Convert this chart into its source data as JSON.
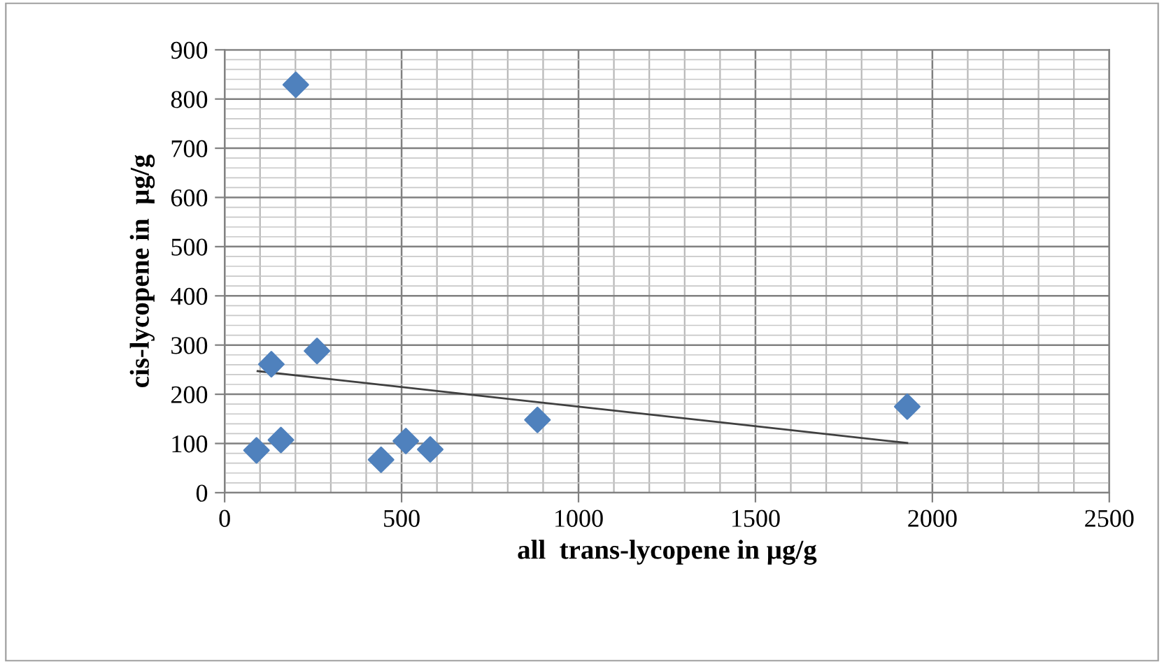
{
  "chart_data": {
    "type": "scatter",
    "xlabel": "all  trans-lycopene in µg/g",
    "ylabel": "cis-lycopene in  µg/g",
    "xlim": [
      0,
      2500
    ],
    "xticks": [
      0,
      500,
      1000,
      1500,
      2000,
      2500
    ],
    "ylim": [
      0,
      900
    ],
    "yticks": [
      0,
      100,
      200,
      300,
      400,
      500,
      600,
      700,
      800,
      900
    ],
    "grid": true,
    "legend": false,
    "series": [
      {
        "marker": "diamond",
        "color": "#4f81bd",
        "x": [
          90,
          132,
          159,
          201,
          261,
          442,
          512,
          581,
          884,
          1929
        ],
        "values": [
          86,
          261,
          107,
          829,
          288,
          67,
          105,
          88,
          148,
          175
        ]
      },
      {
        "type": "line",
        "marker": "none",
        "color": "#404040",
        "x": [
          93,
          1929
        ],
        "values": [
          247,
          101
        ]
      }
    ]
  }
}
